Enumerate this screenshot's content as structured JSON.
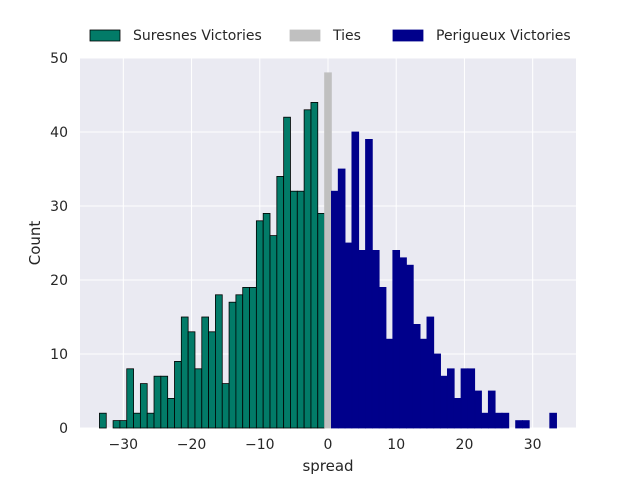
{
  "chart_data": {
    "type": "bar",
    "xlabel": "spread",
    "ylabel": "Count",
    "xlim": [
      -36.35,
      36.35
    ],
    "ylim": [
      0,
      50
    ],
    "x_ticks": [
      -30,
      -20,
      -10,
      0,
      10,
      20,
      30
    ],
    "y_ticks": [
      0,
      10,
      20,
      30,
      40,
      50
    ],
    "grid": true,
    "legend_position": "top",
    "series": [
      {
        "name": "Suresnes Victories",
        "color": "#027b68",
        "edge_color": "#000000",
        "bars": [
          {
            "x": -33,
            "y": 2
          },
          {
            "x": -31,
            "y": 1
          },
          {
            "x": -30,
            "y": 1
          },
          {
            "x": -29,
            "y": 8
          },
          {
            "x": -28,
            "y": 2
          },
          {
            "x": -27,
            "y": 6
          },
          {
            "x": -26,
            "y": 2
          },
          {
            "x": -25,
            "y": 7
          },
          {
            "x": -24,
            "y": 7
          },
          {
            "x": -23,
            "y": 4
          },
          {
            "x": -22,
            "y": 9
          },
          {
            "x": -21,
            "y": 15
          },
          {
            "x": -20,
            "y": 13
          },
          {
            "x": -19,
            "y": 8
          },
          {
            "x": -18,
            "y": 15
          },
          {
            "x": -17,
            "y": 13
          },
          {
            "x": -16,
            "y": 18
          },
          {
            "x": -15,
            "y": 6
          },
          {
            "x": -14,
            "y": 17
          },
          {
            "x": -13,
            "y": 18
          },
          {
            "x": -12,
            "y": 19
          },
          {
            "x": -11,
            "y": 19
          },
          {
            "x": -10,
            "y": 28
          },
          {
            "x": -9,
            "y": 29
          },
          {
            "x": -8,
            "y": 26
          },
          {
            "x": -7,
            "y": 34
          },
          {
            "x": -6,
            "y": 42
          },
          {
            "x": -5,
            "y": 32
          },
          {
            "x": -4,
            "y": 32
          },
          {
            "x": -3,
            "y": 43
          },
          {
            "x": -2,
            "y": 44
          },
          {
            "x": -1,
            "y": 29
          }
        ]
      },
      {
        "name": "Ties",
        "color": "#c0c0c0",
        "edge_color": "#c0c0c0",
        "bars": [
          {
            "x": 0,
            "y": 48
          }
        ]
      },
      {
        "name": "Perigueux Victories",
        "color": "#00008b",
        "edge_color": "#00008b",
        "bars": [
          {
            "x": 1,
            "y": 32
          },
          {
            "x": 2,
            "y": 35
          },
          {
            "x": 3,
            "y": 25
          },
          {
            "x": 4,
            "y": 40
          },
          {
            "x": 5,
            "y": 24
          },
          {
            "x": 6,
            "y": 39
          },
          {
            "x": 7,
            "y": 24
          },
          {
            "x": 8,
            "y": 19
          },
          {
            "x": 9,
            "y": 12
          },
          {
            "x": 10,
            "y": 24
          },
          {
            "x": 11,
            "y": 23
          },
          {
            "x": 12,
            "y": 22
          },
          {
            "x": 13,
            "y": 14
          },
          {
            "x": 14,
            "y": 12
          },
          {
            "x": 15,
            "y": 15
          },
          {
            "x": 16,
            "y": 10
          },
          {
            "x": 17,
            "y": 7
          },
          {
            "x": 18,
            "y": 8
          },
          {
            "x": 19,
            "y": 4
          },
          {
            "x": 20,
            "y": 8
          },
          {
            "x": 21,
            "y": 8
          },
          {
            "x": 22,
            "y": 5
          },
          {
            "x": 23,
            "y": 2
          },
          {
            "x": 24,
            "y": 5
          },
          {
            "x": 25,
            "y": 2
          },
          {
            "x": 26,
            "y": 2
          },
          {
            "x": 28,
            "y": 1
          },
          {
            "x": 29,
            "y": 1
          },
          {
            "x": 33,
            "y": 2
          }
        ]
      }
    ]
  }
}
